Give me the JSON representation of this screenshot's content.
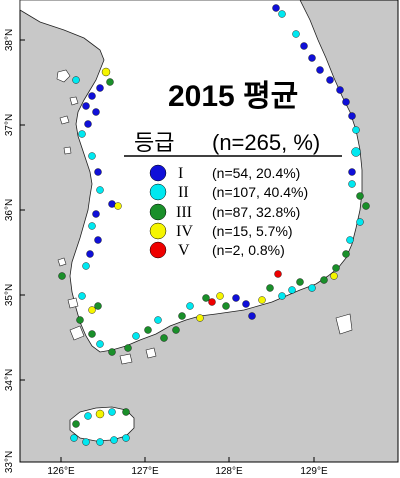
{
  "map": {
    "title": "2015 평균",
    "legend_title": "등급",
    "legend_total": "(n=265, %)",
    "grades": [
      {
        "grade": "I",
        "count_label": "(n=54, 20.4%)",
        "color": "#1010d8"
      },
      {
        "grade": "II",
        "count_label": "(n=107, 40.4%)",
        "color": "#00e8f0"
      },
      {
        "grade": "III",
        "count_label": "(n=87, 32.8%)",
        "color": "#1a8f2a"
      },
      {
        "grade": "IV",
        "count_label": "(n=15, 5.7%)",
        "color": "#f5f500"
      },
      {
        "grade": "V",
        "count_label": "(n=2, 0.8%)",
        "color": "#ee0000"
      }
    ],
    "lon_ticks": [
      "126°E",
      "127°E",
      "128°E",
      "129°E"
    ],
    "lat_ticks": [
      "38°N",
      "37°N",
      "36°N",
      "35°N",
      "34°N",
      "33°N"
    ],
    "colors": {
      "sea": "#c8c8c8",
      "land": "#ffffff",
      "coast": "#202020"
    }
  }
}
